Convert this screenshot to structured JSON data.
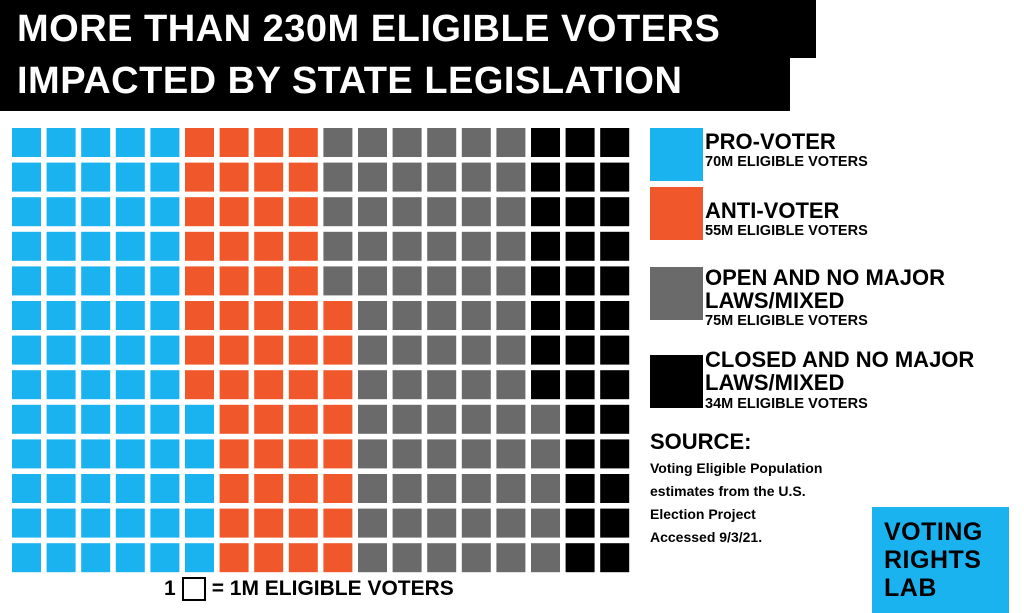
{
  "title": {
    "line1": "MORE THAN 230M ELIGIBLE VOTERS",
    "line2": "IMPACTED BY STATE LEGISLATION"
  },
  "legend": [
    {
      "label_lines": [
        "PRO-VOTER"
      ],
      "value": "70M ELIGIBLE VOTERS",
      "color": "#1ab3f0"
    },
    {
      "label_lines": [
        "ANTI-VOTER"
      ],
      "value": "55M ELIGIBLE VOTERS",
      "color": "#f0572a"
    },
    {
      "label_lines": [
        "OPEN AND NO MAJOR",
        "LAWS/MIXED"
      ],
      "value": "75M ELIGIBLE VOTERS",
      "color": "#6a6a6a"
    },
    {
      "label_lines": [
        "CLOSED AND NO MAJOR",
        "LAWS/MIXED"
      ],
      "value": "34M ELIGIBLE VOTERS",
      "color": "#000000"
    }
  ],
  "source": {
    "heading": "SOURCE:",
    "lines": [
      "Voting Eligible Population",
      "estimates from the U.S.",
      "Election Project",
      "Accessed 9/3/21."
    ]
  },
  "key": {
    "count": "1",
    "text": "= 1M ELIGIBLE VOTERS"
  },
  "logo": {
    "lines": [
      "VOTING",
      "RIGHTS",
      "LAB"
    ],
    "color": "#1ab3f0"
  },
  "chart_data": {
    "type": "waffle",
    "unit": "1M ELIGIBLE VOTERS",
    "grid": {
      "rows": 13,
      "columns": 18
    },
    "categories": [
      "PRO-VOTER",
      "ANTI-VOTER",
      "OPEN AND NO MAJOR LAWS/MIXED",
      "CLOSED AND NO MAJOR LAWS/MIXED"
    ],
    "values": [
      70,
      55,
      75,
      34
    ],
    "colors": [
      "#1ab3f0",
      "#f0572a",
      "#6a6a6a",
      "#000000"
    ]
  }
}
